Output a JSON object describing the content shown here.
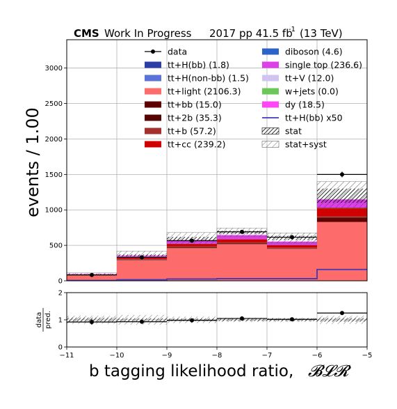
{
  "title": {
    "cms": "CMS",
    "wip": "Work In Progress",
    "lumi_text": "2017 pp 41.5 fb",
    "lumi_exp": "-1",
    "energy": "(13 TeV)"
  },
  "chart_data": [
    {
      "type": "bar",
      "stacked": true,
      "bin_edges": [
        -11,
        -10,
        -9,
        -8,
        -7,
        -6,
        -5
      ],
      "ylabel": "events / 1.00",
      "ylim": [
        0,
        3400
      ],
      "yticks": [
        0,
        500,
        1000,
        1500,
        2000,
        2500,
        3000
      ],
      "grid": true,
      "legend_position": "top",
      "series": [
        {
          "name": "tt+light (2106.3)",
          "color": "#fd6b6b",
          "values": [
            80,
            290,
            460,
            515,
            450,
            830
          ]
        },
        {
          "name": "tt+bb (15.0)",
          "color": "#5e0000",
          "values": [
            1,
            2,
            3,
            4,
            3,
            35
          ]
        },
        {
          "name": "tt+2b (35.3)",
          "color": "#560303",
          "values": [
            1,
            4,
            8,
            10,
            6,
            25
          ]
        },
        {
          "name": "tt+b (57.2)",
          "color": "#a3322e",
          "values": [
            2,
            10,
            16,
            16,
            10,
            20
          ]
        },
        {
          "name": "tt+cc (239.2)",
          "color": "#d00000",
          "values": [
            5,
            20,
            35,
            40,
            35,
            120
          ]
        },
        {
          "name": "tt+H(bb) (1.8)",
          "color": "#2a3ea6",
          "values": [
            0,
            0.3,
            0.3,
            0.4,
            0.3,
            0.5
          ]
        },
        {
          "name": "tt+H(non-bb) (1.5)",
          "color": "#5b72d6",
          "values": [
            0,
            0.3,
            0.3,
            0.3,
            0.3,
            0.3
          ]
        },
        {
          "name": "diboson (4.6)",
          "color": "#2c63c8",
          "values": [
            0,
            0.5,
            0.8,
            1,
            1,
            1
          ]
        },
        {
          "name": "single top (236.6)",
          "color": "#dd3fe8",
          "values": [
            5,
            25,
            45,
            55,
            45,
            115
          ]
        },
        {
          "name": "tt+V (12.0)",
          "color": "#cfc5f0",
          "values": [
            0,
            2,
            3,
            3,
            2,
            2
          ]
        },
        {
          "name": "w+jets (0.0)",
          "color": "#6ac758",
          "values": [
            0,
            0,
            0,
            0,
            0,
            0
          ]
        },
        {
          "name": "dy (18.5)",
          "color": "#ff45f6",
          "values": [
            1,
            3,
            5,
            5,
            3,
            2
          ]
        }
      ],
      "overlay": {
        "name": "tt+H(bb) x50",
        "color": "#3d3ab8",
        "values": [
          5,
          15,
          25,
          30,
          30,
          160
        ]
      },
      "data": {
        "name": "data",
        "values": [
          82,
          330,
          565,
          690,
          615,
          1500
        ],
        "errors": [
          9,
          18,
          24,
          26,
          25,
          39
        ]
      },
      "uncertainty": {
        "stat": {
          "name": "stat",
          "up": [
            100,
            372,
            620,
            705,
            635,
            1300
          ],
          "down": [
            92,
            345,
            565,
            660,
            575,
            1100
          ]
        },
        "stat_syst": {
          "name": "stat+syst",
          "up": [
            112,
            420,
            680,
            745,
            675,
            1400
          ],
          "down": [
            80,
            300,
            520,
            620,
            530,
            1020
          ]
        }
      }
    },
    {
      "type": "scatter",
      "bin_edges": [
        -11,
        -10,
        -9,
        -8,
        -7,
        -6,
        -5
      ],
      "xlabel": "b tagging likelihood ratio,",
      "xlabel_math": "𝓑𝓛𝓡",
      "ylabel_top": "data",
      "ylabel_bottom": "pred.",
      "ylim": [
        0,
        2
      ],
      "yticks": [
        0,
        1,
        2
      ],
      "xticks": [
        -11,
        -10,
        -9,
        -8,
        -7,
        -6,
        -5
      ],
      "grid": true,
      "ratio": [
        0.92,
        0.93,
        0.98,
        1.05,
        1.02,
        1.25
      ],
      "ratio_err": [
        0.1,
        0.05,
        0.04,
        0.04,
        0.04,
        0.03
      ],
      "stat_band": {
        "up": [
          1.08,
          1.06,
          1.05,
          1.05,
          1.05,
          1.07
        ],
        "down": [
          0.92,
          0.94,
          0.95,
          0.95,
          0.95,
          0.93
        ]
      },
      "stat_syst_band": {
        "up": [
          1.15,
          1.18,
          1.12,
          1.08,
          1.08,
          1.15
        ],
        "down": [
          0.85,
          0.82,
          0.88,
          0.92,
          0.92,
          0.85
        ]
      }
    }
  ],
  "legend": {
    "col1": [
      "data",
      "tt+H(bb) (1.8)",
      "tt+H(non-bb) (1.5)",
      "tt+light (2106.3)",
      "tt+bb (15.0)",
      "tt+2b (35.3)",
      "tt+b (57.2)",
      "tt+cc (239.2)"
    ],
    "col2": [
      "diboson (4.6)",
      "single top (236.6)",
      "tt+V (12.0)",
      "w+jets (0.0)",
      "dy (18.5)",
      "tt+H(bb) x50",
      "stat",
      "stat+syst"
    ]
  }
}
